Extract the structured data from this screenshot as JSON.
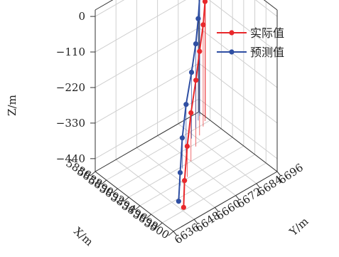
{
  "chart_data": {
    "type": "line3d",
    "xlabel": "X/m",
    "ylabel": "Y/m",
    "zlabel": "Z/m",
    "x_ticks": [
      "5886",
      "5888",
      "5890",
      "5892",
      "5894",
      "5896",
      "5898",
      "5900"
    ],
    "y_ticks": [
      "6636",
      "6648",
      "6660",
      "6672",
      "6684",
      "6696"
    ],
    "z_ticks": [
      "0",
      "−110",
      "−220",
      "−330",
      "−440"
    ],
    "xlim": [
      5886,
      5900
    ],
    "ylim": [
      6636,
      6696
    ],
    "zlim": [
      -480,
      20
    ],
    "grid": true,
    "legend_position": "top-right",
    "series": [
      {
        "name": "实际值",
        "color": "#e8282b",
        "points": [
          {
            "x": 5887.0,
            "y": 6696.0,
            "z": 0
          },
          {
            "x": 5887.3,
            "y": 6695.5,
            "z": -55
          },
          {
            "x": 5887.7,
            "y": 6694.0,
            "z": -110
          },
          {
            "x": 5888.3,
            "y": 6691.0,
            "z": -165
          },
          {
            "x": 5889.2,
            "y": 6686.0,
            "z": -220
          },
          {
            "x": 5890.4,
            "y": 6680.0,
            "z": -275
          },
          {
            "x": 5892.0,
            "y": 6672.0,
            "z": -330
          },
          {
            "x": 5893.8,
            "y": 6664.0,
            "z": -385
          },
          {
            "x": 5895.8,
            "y": 6656.0,
            "z": -440
          },
          {
            "x": 5897.8,
            "y": 6649.0,
            "z": -475
          }
        ]
      },
      {
        "name": "预测值",
        "color": "#2f4fa3",
        "points": [
          {
            "x": 5886.2,
            "y": 6695.5,
            "z": 20
          },
          {
            "x": 5886.3,
            "y": 6695.3,
            "z": -55
          },
          {
            "x": 5886.6,
            "y": 6694.5,
            "z": -110
          },
          {
            "x": 5887.1,
            "y": 6692.0,
            "z": -165
          },
          {
            "x": 5887.9,
            "y": 6688.0,
            "z": -220
          },
          {
            "x": 5889.0,
            "y": 6682.0,
            "z": -275
          },
          {
            "x": 5890.5,
            "y": 6674.0,
            "z": -330
          },
          {
            "x": 5892.3,
            "y": 6666.0,
            "z": -385
          },
          {
            "x": 5894.4,
            "y": 6658.0,
            "z": -440
          },
          {
            "x": 5896.6,
            "y": 6650.0,
            "z": -475
          }
        ]
      }
    ]
  }
}
